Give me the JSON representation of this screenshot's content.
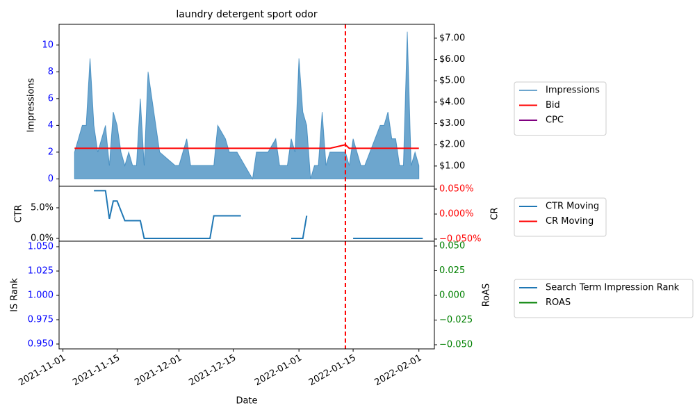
{
  "chart_data": [
    {
      "type": "line",
      "title": "laundry detergent sport odor",
      "ylabel": "Impressions",
      "xlim": [
        "2021-10-31",
        "2022-02-05"
      ],
      "ylim": [
        -0.55,
        11.55
      ],
      "yticks": [
        0,
        2,
        4,
        6,
        8,
        10
      ],
      "ytick_color": "#0000ff",
      "y2lim": [
        0.05,
        7.65
      ],
      "y2ticks": [
        {
          "value": 1,
          "label": "$1.00"
        },
        {
          "value": 2,
          "label": "$2.00"
        },
        {
          "value": 3,
          "label": "$3.00"
        },
        {
          "value": 4,
          "label": "$4.00"
        },
        {
          "value": 5,
          "label": "$5.00"
        },
        {
          "value": 6,
          "label": "$6.00"
        },
        {
          "value": 7,
          "label": "$7.00"
        }
      ],
      "y2tick_color": "#000000",
      "vline": "2022-01-13",
      "vline_color": "#ff0000",
      "x": [
        "2021-11-04",
        "2021-11-05",
        "2021-11-06",
        "2021-11-07",
        "2021-11-08",
        "2021-11-09",
        "2021-11-10",
        "2021-11-11",
        "2021-11-12",
        "2021-11-13",
        "2021-11-14",
        "2021-11-15",
        "2021-11-16",
        "2021-11-17",
        "2021-11-18",
        "2021-11-19",
        "2021-11-20",
        "2021-11-21",
        "2021-11-22",
        "2021-11-23",
        "2021-11-26",
        "2021-11-30",
        "2021-12-01",
        "2021-12-03",
        "2021-12-04",
        "2021-12-10",
        "2021-12-11",
        "2021-12-13",
        "2021-12-14",
        "2021-12-16",
        "2021-12-20",
        "2021-12-21",
        "2021-12-24",
        "2021-12-26",
        "2021-12-27",
        "2021-12-29",
        "2021-12-30",
        "2021-12-31",
        "2022-01-01",
        "2022-01-02",
        "2022-01-03",
        "2022-01-04",
        "2022-01-05",
        "2022-01-06",
        "2022-01-07",
        "2022-01-08",
        "2022-01-09",
        "2022-01-13",
        "2022-01-14",
        "2022-01-15",
        "2022-01-17",
        "2022-01-18",
        "2022-01-22",
        "2022-01-23",
        "2022-01-24",
        "2022-01-25",
        "2022-01-26",
        "2022-01-27",
        "2022-01-28",
        "2022-01-29",
        "2022-01-30",
        "2022-01-31",
        "2022-02-01"
      ],
      "series": [
        {
          "name": "Impressions",
          "color": "#1f77b4",
          "fill": true,
          "values": [
            2,
            3,
            4,
            4,
            9,
            4,
            2,
            3,
            4,
            1,
            5,
            4,
            2,
            1,
            2,
            1,
            1,
            6,
            1,
            8,
            2,
            1,
            1,
            3,
            1,
            1,
            4,
            3,
            2,
            2,
            0,
            2,
            2,
            3,
            1,
            1,
            3,
            2,
            9,
            5,
            4,
            0,
            1,
            1,
            5,
            1,
            2,
            2,
            1,
            3,
            1,
            1,
            4,
            4,
            5,
            3,
            3,
            1,
            1,
            11,
            1,
            2,
            1
          ]
        },
        {
          "name": "Bid",
          "color": "#ff0000",
          "axis": "y2",
          "values": [
            1.83,
            1.83,
            1.83,
            1.83,
            1.83,
            1.83,
            1.83,
            1.83,
            1.83,
            1.83,
            1.83,
            1.83,
            1.83,
            1.83,
            1.83,
            1.83,
            1.83,
            1.83,
            1.83,
            1.83,
            1.83,
            1.83,
            1.83,
            1.83,
            1.83,
            1.83,
            1.83,
            1.83,
            1.83,
            1.83,
            1.83,
            1.83,
            1.83,
            1.83,
            1.83,
            1.83,
            1.83,
            1.83,
            1.83,
            1.83,
            1.83,
            1.83,
            1.83,
            1.83,
            1.83,
            1.83,
            1.83,
            2.0,
            1.83,
            1.83,
            1.83,
            1.83,
            1.83,
            1.83,
            1.83,
            1.83,
            1.83,
            1.83,
            1.83,
            1.83,
            1.83,
            1.83,
            1.83
          ]
        },
        {
          "name": "CPC",
          "color": "#800080",
          "axis": "y2",
          "values": [
            null,
            null,
            null,
            null,
            null,
            null,
            null,
            null,
            null,
            null,
            null,
            null,
            null,
            null,
            null,
            null,
            null,
            null,
            null,
            null,
            null,
            null,
            null,
            null,
            null,
            null,
            null,
            null,
            null,
            null,
            null,
            null,
            null,
            null,
            null,
            null,
            null,
            null,
            null,
            null,
            null,
            null,
            null,
            null,
            null,
            null,
            null,
            null,
            null,
            null,
            null,
            null,
            null,
            null,
            null,
            null,
            null,
            null,
            null,
            null,
            null,
            null,
            null
          ]
        }
      ]
    },
    {
      "type": "line",
      "ylabel": "CTR",
      "y2label": "CR",
      "xlim": [
        "2021-10-31",
        "2022-02-05"
      ],
      "ylim": [
        -0.45,
        8.52
      ],
      "yticks": [
        {
          "value": 0,
          "label": "0.0%"
        },
        {
          "value": 5,
          "label": "5.0%"
        }
      ],
      "ytick_color": "#000000",
      "y2lim": [
        -0.0542,
        0.0556
      ],
      "y2ticks": [
        {
          "value": -0.05,
          "label": "−0.050%"
        },
        {
          "value": 0,
          "label": "0.000%"
        },
        {
          "value": 0.05,
          "label": "0.050%"
        }
      ],
      "y2tick_color": "#ff0000",
      "vline": "2022-01-13",
      "vline_color": "#ff0000",
      "x": [
        "2021-11-09",
        "2021-11-12",
        "2021-11-13",
        "2021-11-14",
        "2021-11-15",
        "2021-11-17",
        "2021-11-21",
        "2021-11-22",
        "2021-12-09",
        "2021-12-10",
        "2021-12-17",
        "2021-12-18",
        "2021-12-30",
        "2022-01-02",
        "2022-01-03",
        "2022-01-04",
        "2022-01-15",
        "2022-02-02"
      ],
      "series": [
        {
          "name": "CTR Moving",
          "color": "#1f77b4",
          "values": [
            7.8,
            7.8,
            3.2,
            6.1,
            6.1,
            2.9,
            2.9,
            0,
            0,
            3.7,
            3.7,
            null,
            0,
            0,
            3.7,
            null,
            0,
            0
          ]
        },
        {
          "name": "CR Moving",
          "color": "#ff0000",
          "axis": "y2",
          "values": [
            null,
            null,
            null,
            null,
            null,
            null,
            null,
            null,
            null,
            null,
            null,
            null,
            null,
            null,
            null,
            null,
            null,
            null
          ]
        }
      ]
    },
    {
      "type": "line",
      "ylabel": "IS Rank",
      "y2label": "RoAS",
      "xlabel": "Date",
      "xlim": [
        "2021-10-31",
        "2022-02-05"
      ],
      "xticks": [
        "2021-11-01",
        "2021-11-15",
        "2021-12-01",
        "2021-12-15",
        "2022-01-01",
        "2022-01-15",
        "2022-02-01"
      ],
      "ylim": [
        0.945,
        1.0557
      ],
      "yticks": [
        {
          "value": 0.95,
          "label": "0.950"
        },
        {
          "value": 0.975,
          "label": "0.975"
        },
        {
          "value": 1.0,
          "label": "1.000"
        },
        {
          "value": 1.025,
          "label": "1.025"
        },
        {
          "value": 1.05,
          "label": "1.050"
        }
      ],
      "ytick_color": "#0000ff",
      "y2lim": [
        -0.0542,
        0.0549
      ],
      "y2ticks": [
        {
          "value": -0.05,
          "label": "−0.050"
        },
        {
          "value": -0.025,
          "label": "−0.025"
        },
        {
          "value": 0,
          "label": "0.000"
        },
        {
          "value": 0.025,
          "label": "0.025"
        },
        {
          "value": 0.05,
          "label": "0.050"
        }
      ],
      "y2tick_color": "#008000",
      "vline": "2022-01-13",
      "vline_color": "#ff0000",
      "x": [],
      "series": [
        {
          "name": "Search Term Impression Rank",
          "color": "#1f77b4",
          "values": []
        },
        {
          "name": "ROAS",
          "color": "#008000",
          "axis": "y2",
          "values": []
        }
      ]
    }
  ]
}
